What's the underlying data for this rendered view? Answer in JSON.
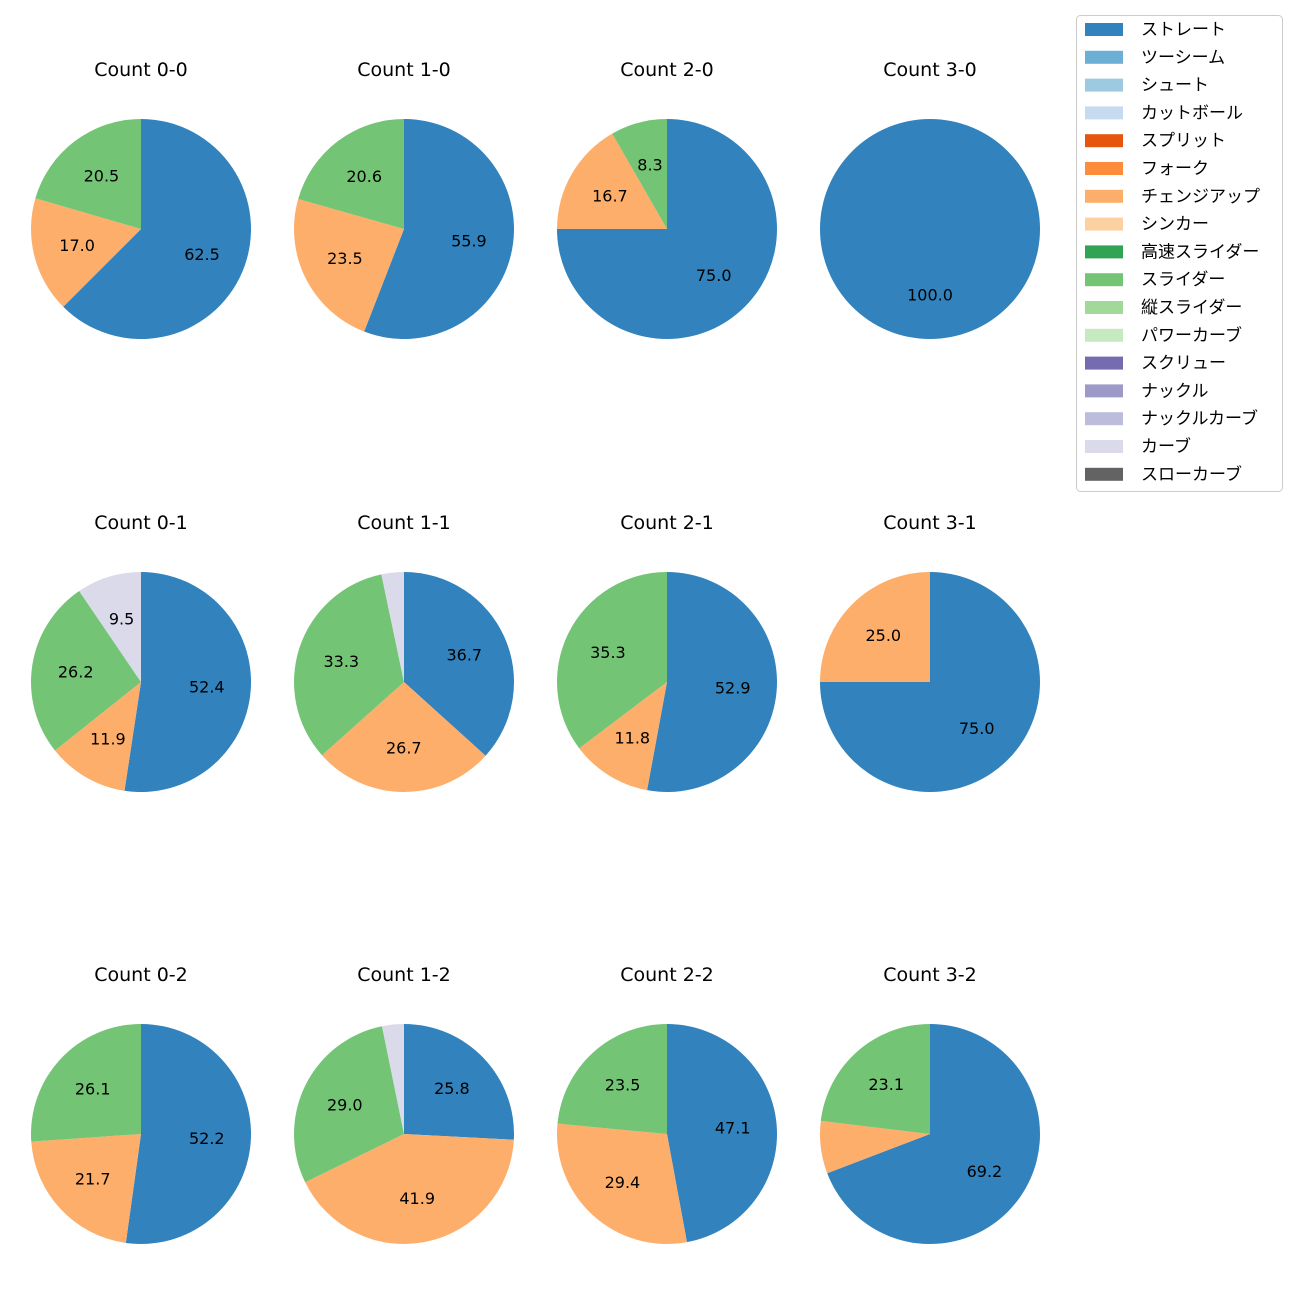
{
  "chart_data": {
    "type": "pie",
    "legend": {
      "placement": "top-right",
      "entries": [
        {
          "label": "ストレート",
          "color": "#3182bd"
        },
        {
          "label": "ツーシーム",
          "color": "#6baed6"
        },
        {
          "label": "シュート",
          "color": "#9ecae1"
        },
        {
          "label": "カットボール",
          "color": "#c6dbef"
        },
        {
          "label": "スプリット",
          "color": "#e6550d"
        },
        {
          "label": "フォーク",
          "color": "#fd8d3c"
        },
        {
          "label": "チェンジアップ",
          "color": "#fdae6b"
        },
        {
          "label": "シンカー",
          "color": "#fdd0a2"
        },
        {
          "label": "高速スライダー",
          "color": "#31a354"
        },
        {
          "label": "スライダー",
          "color": "#74c476"
        },
        {
          "label": "縦スライダー",
          "color": "#a1d99b"
        },
        {
          "label": "パワーカーブ",
          "color": "#c7e9c0"
        },
        {
          "label": "スクリュー",
          "color": "#756bb1"
        },
        {
          "label": "ナックル",
          "color": "#9e9ac8"
        },
        {
          "label": "ナックルカーブ",
          "color": "#bcbddc"
        },
        {
          "label": "カーブ",
          "color": "#dadaeb"
        },
        {
          "label": "スローカーブ",
          "color": "#636363"
        }
      ]
    },
    "pies": [
      {
        "title": "Count 0-0",
        "slices": [
          {
            "pitch": "ストレート",
            "value": 62.5,
            "label": "62.5"
          },
          {
            "pitch": "チェンジアップ",
            "value": 17.0,
            "label": "17.0"
          },
          {
            "pitch": "スライダー",
            "value": 20.5,
            "label": "20.5"
          }
        ]
      },
      {
        "title": "Count 1-0",
        "slices": [
          {
            "pitch": "ストレート",
            "value": 55.9,
            "label": "55.9"
          },
          {
            "pitch": "チェンジアップ",
            "value": 23.5,
            "label": "23.5"
          },
          {
            "pitch": "スライダー",
            "value": 20.6,
            "label": "20.6"
          }
        ]
      },
      {
        "title": "Count 2-0",
        "slices": [
          {
            "pitch": "ストレート",
            "value": 75.0,
            "label": "75.0"
          },
          {
            "pitch": "チェンジアップ",
            "value": 16.7,
            "label": "16.7"
          },
          {
            "pitch": "スライダー",
            "value": 8.3,
            "label": "8.3"
          }
        ]
      },
      {
        "title": "Count 3-0",
        "slices": [
          {
            "pitch": "ストレート",
            "value": 100.0,
            "label": "100.0"
          }
        ]
      },
      {
        "title": "Count 0-1",
        "slices": [
          {
            "pitch": "ストレート",
            "value": 52.4,
            "label": "52.4"
          },
          {
            "pitch": "チェンジアップ",
            "value": 11.9,
            "label": "11.9"
          },
          {
            "pitch": "スライダー",
            "value": 26.2,
            "label": "26.2"
          },
          {
            "pitch": "カーブ",
            "value": 9.5,
            "label": "9.5"
          }
        ]
      },
      {
        "title": "Count 1-1",
        "slices": [
          {
            "pitch": "ストレート",
            "value": 36.7,
            "label": "36.7"
          },
          {
            "pitch": "チェンジアップ",
            "value": 26.7,
            "label": "26.7"
          },
          {
            "pitch": "スライダー",
            "value": 33.3,
            "label": "33.3"
          },
          {
            "pitch": "カーブ",
            "value": 3.3,
            "label": ""
          }
        ]
      },
      {
        "title": "Count 2-1",
        "slices": [
          {
            "pitch": "ストレート",
            "value": 52.9,
            "label": "52.9"
          },
          {
            "pitch": "チェンジアップ",
            "value": 11.8,
            "label": "11.8"
          },
          {
            "pitch": "スライダー",
            "value": 35.3,
            "label": "35.3"
          }
        ]
      },
      {
        "title": "Count 3-1",
        "slices": [
          {
            "pitch": "ストレート",
            "value": 75.0,
            "label": "75.0"
          },
          {
            "pitch": "チェンジアップ",
            "value": 25.0,
            "label": "25.0"
          }
        ]
      },
      {
        "title": "Count 0-2",
        "slices": [
          {
            "pitch": "ストレート",
            "value": 52.2,
            "label": "52.2"
          },
          {
            "pitch": "チェンジアップ",
            "value": 21.7,
            "label": "21.7"
          },
          {
            "pitch": "スライダー",
            "value": 26.1,
            "label": "26.1"
          }
        ]
      },
      {
        "title": "Count 1-2",
        "slices": [
          {
            "pitch": "ストレート",
            "value": 25.8,
            "label": "25.8"
          },
          {
            "pitch": "チェンジアップ",
            "value": 41.9,
            "label": "41.9"
          },
          {
            "pitch": "スライダー",
            "value": 29.0,
            "label": "29.0"
          },
          {
            "pitch": "カーブ",
            "value": 3.2,
            "label": ""
          }
        ]
      },
      {
        "title": "Count 2-2",
        "slices": [
          {
            "pitch": "ストレート",
            "value": 47.1,
            "label": "47.1"
          },
          {
            "pitch": "チェンジアップ",
            "value": 29.4,
            "label": "29.4"
          },
          {
            "pitch": "スライダー",
            "value": 23.5,
            "label": "23.5"
          }
        ]
      },
      {
        "title": "Count 3-2",
        "slices": [
          {
            "pitch": "ストレート",
            "value": 69.2,
            "label": "69.2"
          },
          {
            "pitch": "チェンジアップ",
            "value": 7.7,
            "label": ""
          },
          {
            "pitch": "スライダー",
            "value": 23.1,
            "label": "23.1"
          }
        ]
      }
    ]
  }
}
